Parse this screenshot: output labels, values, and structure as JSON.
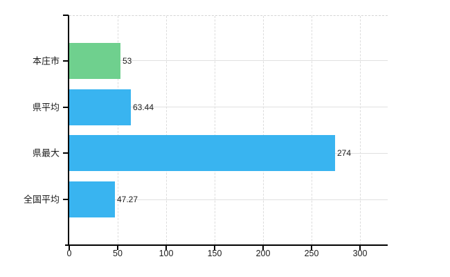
{
  "chart_data": {
    "type": "bar",
    "orientation": "horizontal",
    "title": "",
    "xlabel": "",
    "ylabel": "",
    "categories": [
      "本庄市",
      "県平均",
      "県最大",
      "全国平均"
    ],
    "values": [
      53,
      63.44,
      274,
      47.27
    ],
    "value_labels": [
      "53",
      "63.44",
      "274",
      "47.27"
    ],
    "bar_colors": [
      "#6fd08e",
      "#39b4f0",
      "#39b4f0",
      "#39b4f0"
    ],
    "xlim": [
      0,
      330
    ],
    "x_ticks": [
      0,
      50,
      100,
      150,
      200,
      250,
      300
    ],
    "x_tick_labels": [
      "0",
      "50",
      "100",
      "150",
      "200",
      "250",
      "300"
    ],
    "grid": true,
    "legend": false
  },
  "colors": {
    "bar_green": "#6fd08e",
    "bar_blue": "#39b4f0",
    "axis_line": "#000000",
    "gridline": "#dcdcdc",
    "background": "#ffffff",
    "text": "#1b1b1b"
  }
}
